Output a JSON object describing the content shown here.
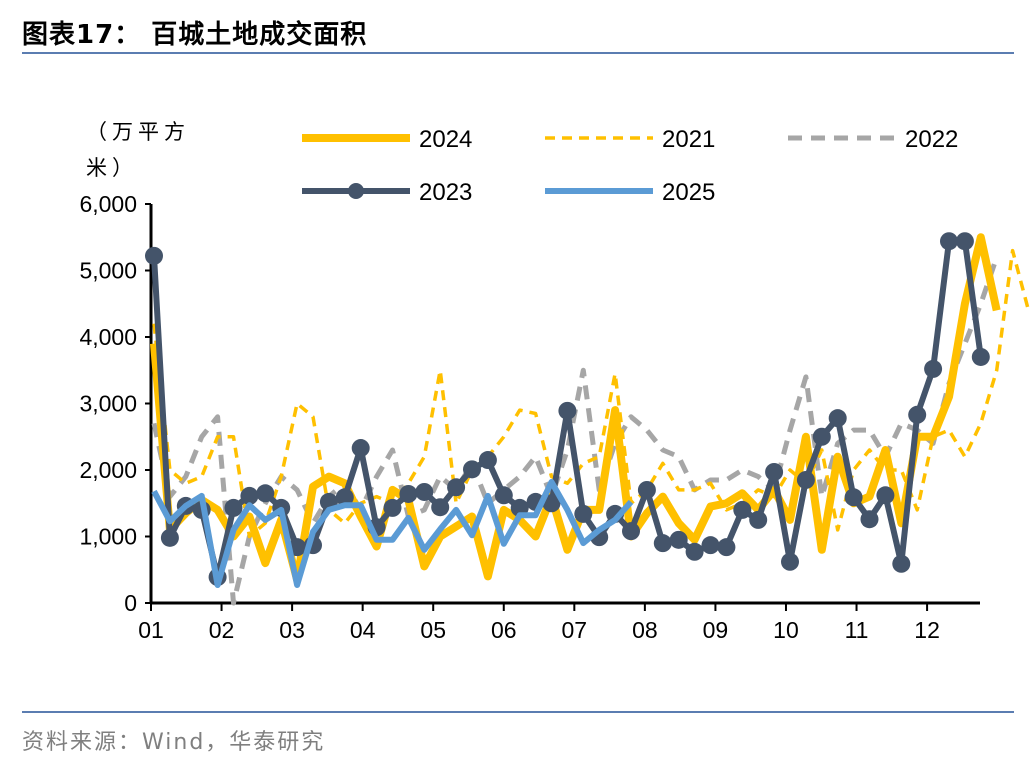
{
  "header": {
    "title": "图表17：  百城土地成交面积"
  },
  "footer": {
    "source": "资料来源：Wind，华泰研究"
  },
  "chart_data": {
    "type": "line",
    "title": "百城土地成交面积",
    "ylabel": "（万平方米）",
    "ylim": [
      0,
      6000
    ],
    "yticks": [
      "0",
      "1,000",
      "2,000",
      "3,000",
      "4,000",
      "5,000",
      "6,000"
    ],
    "ytick_values": [
      0,
      1000,
      2000,
      3000,
      4000,
      5000,
      6000
    ],
    "xticks": [
      "01",
      "02",
      "03",
      "04",
      "05",
      "06",
      "07",
      "08",
      "09",
      "10",
      "11",
      "12"
    ],
    "x_unit": "week",
    "grid": false,
    "legend": "top",
    "series": [
      {
        "name": "2024",
        "color": "#FFC000",
        "style": "solid",
        "values": [
          3900,
          1100,
          1350,
          1550,
          1400,
          1000,
          1300,
          600,
          1250,
          350,
          1750,
          1900,
          1800,
          1300,
          850,
          1700,
          1550,
          550,
          1000,
          1150,
          1300,
          400,
          1400,
          1250,
          1000,
          1600,
          800,
          1400,
          1400,
          2900,
          1000,
          1350,
          1600,
          1200,
          950,
          1450,
          1500,
          1650,
          1400,
          1700,
          1250,
          2500,
          800,
          2200,
          1500,
          1600,
          2300,
          1200,
          2500,
          2500,
          3100,
          4500,
          5500,
          4400
        ]
      },
      {
        "name": "2021",
        "color": "#FFC000",
        "style": "dashed",
        "values": [
          4200,
          2000,
          1800,
          1900,
          2500,
          2500,
          1000,
          1200,
          1900,
          3000,
          2800,
          1400,
          1200,
          1500,
          1600,
          1500,
          1800,
          2200,
          3500,
          1500,
          2000,
          2200,
          2500,
          2900,
          2850,
          1900,
          1800,
          2100,
          2200,
          3450,
          1500,
          1700,
          2100,
          1700,
          1700,
          1800,
          1400,
          1500,
          1700,
          1600,
          2000,
          1800,
          2300,
          1100,
          2000,
          2300,
          2000,
          2000,
          1400,
          2500,
          2600,
          2200,
          2700,
          3500,
          5300,
          4400
        ]
      },
      {
        "name": "2022",
        "color": "#A6A6A6",
        "style": "dashed",
        "values": [
          2700,
          1600,
          1900,
          2500,
          2800,
          0,
          1000,
          1500,
          1900,
          1700,
          1200,
          1600,
          1800,
          1400,
          1900,
          2300,
          1300,
          1400,
          1900,
          1700,
          2100,
          1500,
          1700,
          1900,
          2200,
          1600,
          2300,
          3500,
          1700,
          2400,
          2800,
          2600,
          2300,
          2200,
          1700,
          1850,
          1850,
          2000,
          1900,
          1700,
          2600,
          3400,
          1600,
          2400,
          2600,
          2600,
          2200,
          2700,
          2600,
          2400,
          3300,
          3900,
          4500,
          5200
        ]
      },
      {
        "name": "2023",
        "color": "#44546A",
        "style": "marker",
        "values": [
          5220,
          980,
          1460,
          1400,
          390,
          1430,
          1610,
          1650,
          1430,
          840,
          870,
          1520,
          1590,
          2330,
          1140,
          1430,
          1640,
          1670,
          1440,
          1740,
          2010,
          2150,
          1620,
          1430,
          1520,
          1500,
          2890,
          1340,
          990,
          1340,
          1080,
          1700,
          900,
          950,
          770,
          870,
          840,
          1400,
          1250,
          1970,
          620,
          1850,
          2500,
          2780,
          1590,
          1260,
          1620,
          590,
          2830,
          3520,
          5440,
          5440,
          3700
        ]
      },
      {
        "name": "2025",
        "color": "#5B9BD5",
        "style": "solid",
        "values": [
          1680,
          1230,
          1460,
          1610,
          270,
          1100,
          1470,
          1250,
          1400,
          270,
          1070,
          1400,
          1470,
          1470,
          950,
          950,
          1280,
          800,
          1110,
          1400,
          1020,
          1610,
          890,
          1320,
          1320,
          1820,
          1400,
          900,
          1100,
          1250,
          1520
        ]
      }
    ]
  }
}
